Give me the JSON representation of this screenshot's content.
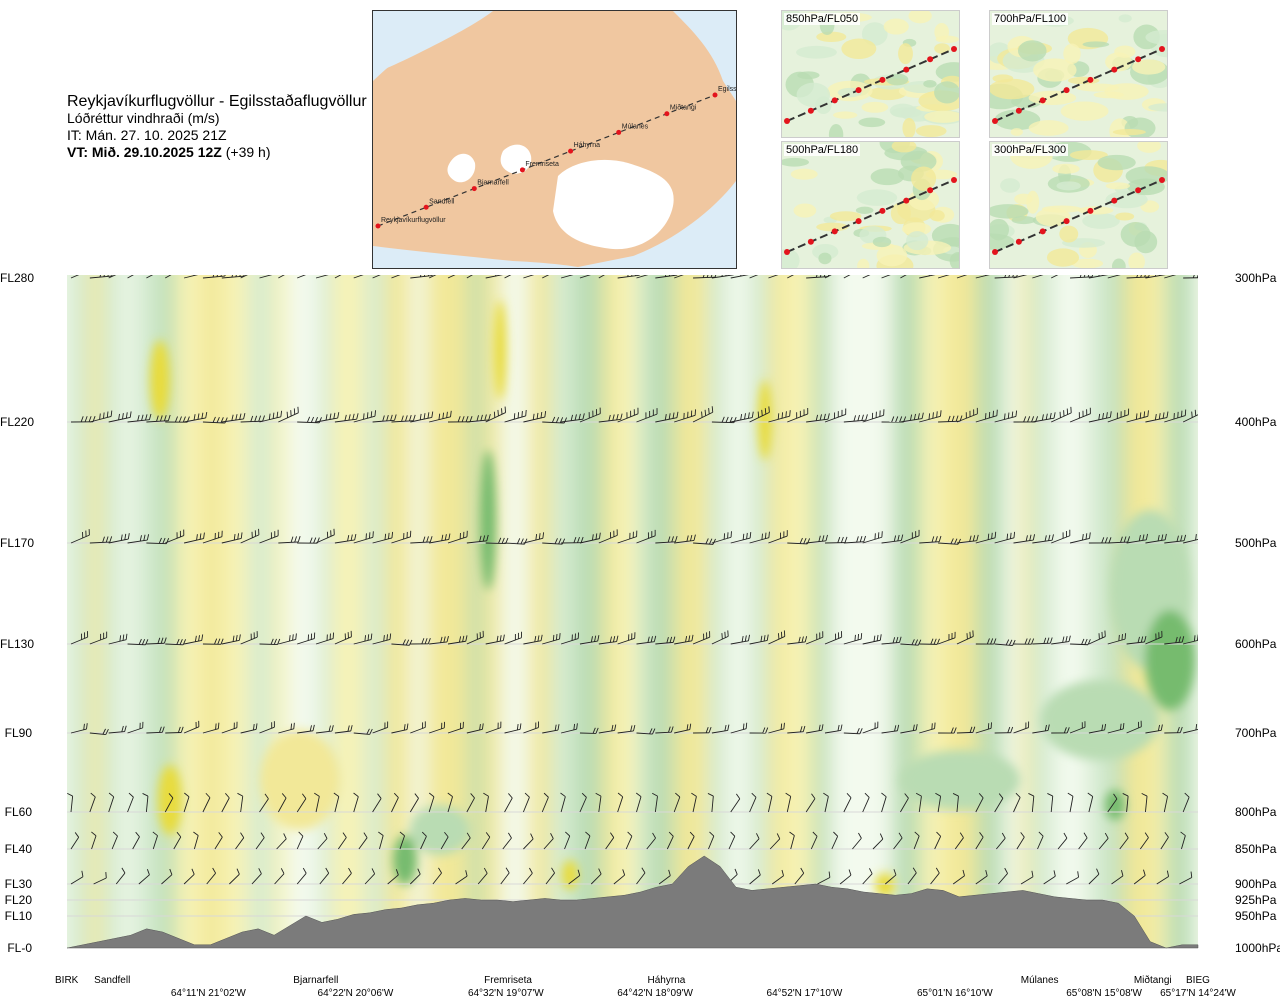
{
  "header": {
    "route": "Reykjavíkurflugvöllur - Egilsstaðaflugvöllur",
    "variable": "Lóðréttur vindhraði (m/s)",
    "issued": "IT: Mán. 27. 10. 2025 21Z",
    "valid_bold": "VT: Mið. 29.10.2025 12Z",
    "valid_offset": "(+39 h)"
  },
  "map": {
    "points": [
      "Reykjavíkurflugvöllur",
      "Sandfell",
      "Bjarnarfell",
      "Fremriseta",
      "Háhyrna",
      "Múlanes",
      "Miðtangi",
      "Egilsstaðir"
    ]
  },
  "thumbnails": [
    {
      "label": "850hPa/FL050"
    },
    {
      "label": "700hPa/FL100"
    },
    {
      "label": "500hPa/FL180"
    },
    {
      "label": "300hPa/FL300"
    }
  ],
  "colors": {
    "ascent_pale": "#f7f3b6",
    "ascent_mid": "#f2e898",
    "ascent_strong": "#e8dc3c",
    "descent_pale": "#d5ebd1",
    "descent_mid": "#b9dcb3",
    "descent_strong": "#76bb6e",
    "neutral": "#f3faee",
    "terrain": "#7b7b7b",
    "map_land": "#f0c7a0",
    "map_sea": "#dcecf7",
    "route": "#e3141d"
  },
  "chart_data": {
    "type": "heatmap",
    "title": "Reykjavíkurflugvöllur - Egilsstaðaflugvöllur",
    "subtitle": "Lóðréttur vindhraði (m/s)",
    "y_left_ticks": [
      "FL280",
      "FL220",
      "FL170",
      "FL130",
      "FL90",
      "FL60",
      "FL40",
      "FL30",
      "FL20",
      "FL10",
      "FL-0"
    ],
    "y_right_ticks": [
      "300hPa",
      "400hPa",
      "500hPa",
      "600hPa",
      "700hPa",
      "800hPa",
      "850hPa",
      "900hPa",
      "925hPa",
      "950hPa",
      "1000hPa"
    ],
    "y_fl_values": [
      280,
      220,
      170,
      130,
      90,
      60,
      40,
      30,
      20,
      10,
      0
    ],
    "x_points": [
      {
        "name": "BIRK",
        "distance": 0
      },
      {
        "name": "Sandfell",
        "distance": 0.04
      },
      {
        "name": "Bjarnarfell",
        "distance": 0.22
      },
      {
        "name": "Fremriseta",
        "distance": 0.39
      },
      {
        "name": "Háhyrna",
        "distance": 0.53
      },
      {
        "name": "Múlanes",
        "distance": 0.86
      },
      {
        "name": "Miðtangi",
        "distance": 0.96
      },
      {
        "name": "BIEG",
        "distance": 1.0
      }
    ],
    "x_coords": [
      {
        "label": "64°11'N 21°02'W",
        "distance": 0.125
      },
      {
        "label": "64°22'N 20°06'W",
        "distance": 0.255
      },
      {
        "label": "64°32'N 19°07'W",
        "distance": 0.388
      },
      {
        "label": "64°42'N 18°09'W",
        "distance": 0.52
      },
      {
        "label": "64°52'N 17°10'W",
        "distance": 0.652
      },
      {
        "label": "65°01'N 16°10'W",
        "distance": 0.785
      },
      {
        "label": "65°08'N 15°08'W",
        "distance": 0.917
      },
      {
        "label": "65°17'N 14°24'W",
        "distance": 1.0
      }
    ],
    "terrain_fl": [
      0,
      1,
      2,
      3,
      4,
      6,
      5,
      3,
      1,
      1,
      3,
      5,
      6,
      4,
      7,
      10,
      8,
      9,
      11,
      12,
      14,
      15,
      17,
      18,
      20,
      21,
      20,
      20,
      19,
      20,
      21,
      20,
      20,
      21,
      22,
      23,
      25,
      28,
      30,
      35,
      38,
      35,
      28,
      26,
      27,
      28,
      29,
      30,
      28,
      27,
      25,
      24,
      23,
      24,
      27,
      26,
      22,
      23,
      24,
      25,
      26,
      24,
      22,
      21,
      20,
      20,
      18,
      10,
      2,
      0,
      1,
      1
    ],
    "legend": "ascent = yellow, descent = green"
  }
}
